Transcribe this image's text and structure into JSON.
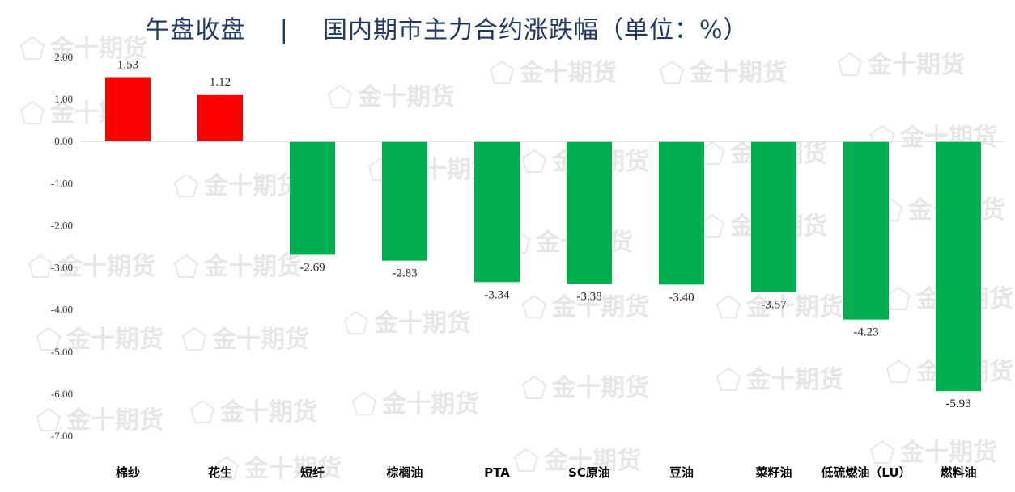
{
  "title": {
    "left": "午盘收盘",
    "separator": "|",
    "right": "国内期市主力合约涨跌幅（单位：%）"
  },
  "watermark_text": "金十期货",
  "chart_data": {
    "type": "bar",
    "categories": [
      "棉纱",
      "花生",
      "短纤",
      "棕榈油",
      "PTA",
      "SC原油",
      "豆油",
      "菜籽油",
      "低硫燃油（LU）",
      "燃料油"
    ],
    "values": [
      1.53,
      1.12,
      -2.69,
      -2.83,
      -3.34,
      -3.38,
      -3.4,
      -3.57,
      -4.23,
      -5.93
    ],
    "data_labels": [
      "1.53",
      "1.12",
      "-2.69",
      "-2.83",
      "-3.34",
      "-3.38",
      "-3.40",
      "-3.57",
      "-4.23",
      "-5.93"
    ],
    "yticks": [
      2.0,
      1.0,
      0.0,
      -1.0,
      -2.0,
      -3.0,
      -4.0,
      -5.0,
      -6.0,
      -7.0
    ],
    "ytick_labels": [
      "2.00",
      "1.00",
      "0.00",
      "-1.00",
      "-2.00",
      "-3.00",
      "-4.00",
      "-5.00",
      "-6.00",
      "-7.00"
    ],
    "ylim": [
      -7.0,
      2.0
    ],
    "grid": false,
    "colors": {
      "positive": "#ff0000",
      "negative": "#00b050",
      "axis": "#d9d9d9"
    }
  }
}
